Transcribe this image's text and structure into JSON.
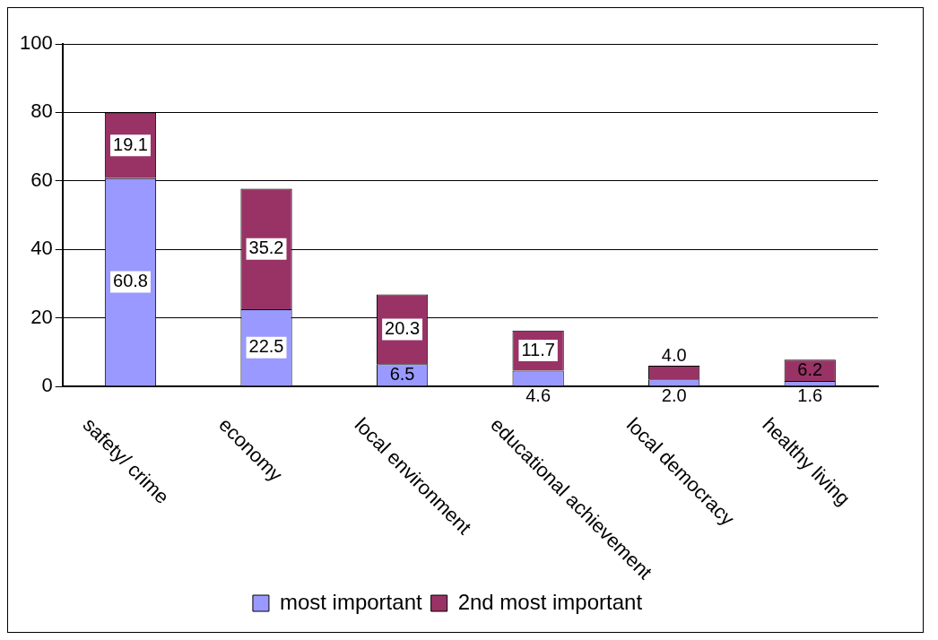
{
  "chart_data": {
    "type": "bar",
    "stacked": true,
    "categories": [
      "safety/ crime",
      "economy",
      "local environment",
      "educational achievement",
      "local democracy",
      "healthy living"
    ],
    "series": [
      {
        "name": "most important",
        "color": "#9999ff",
        "values": [
          60.8,
          22.5,
          6.5,
          4.6,
          2.0,
          1.6
        ],
        "value_labels": [
          "60.8",
          "22.5",
          "6.5",
          "4.6",
          "2.0",
          "1.6"
        ]
      },
      {
        "name": "2nd most important",
        "color": "#993366",
        "values": [
          19.1,
          35.2,
          20.3,
          11.7,
          4.0,
          6.2
        ],
        "value_labels": [
          "19.1",
          "35.2",
          "20.3",
          "11.7",
          "4.0",
          "6.2"
        ]
      }
    ],
    "ylim": [
      0,
      100
    ],
    "yticks": [
      0,
      20,
      40,
      60,
      80,
      100
    ],
    "grid": "y",
    "legend": "bottom"
  }
}
